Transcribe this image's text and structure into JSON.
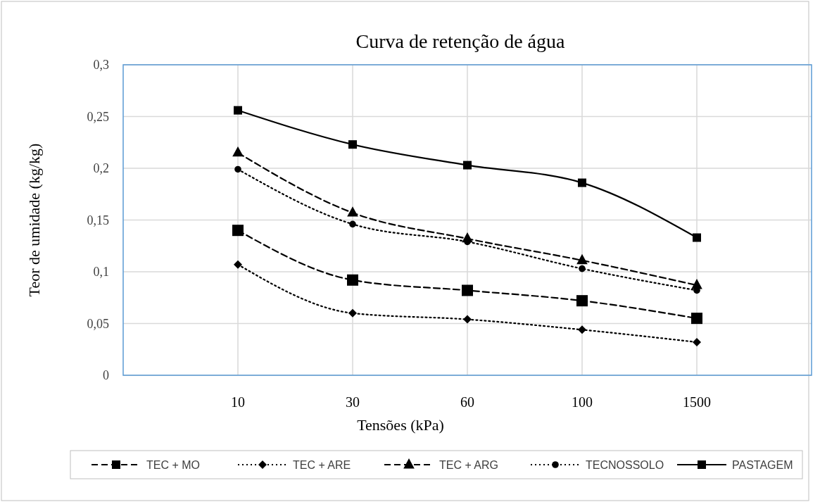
{
  "chart_data": {
    "type": "line",
    "title": "Curva  de retenção  de água",
    "xlabel": "Tensões (kPa)",
    "ylabel": "Teor de umidade (kg/kg)",
    "categories": [
      "10",
      "30",
      "60",
      "100",
      "1500"
    ],
    "ylim": [
      0,
      0.3
    ],
    "yticks": [
      {
        "value": 0,
        "label": "0"
      },
      {
        "value": 0.05,
        "label": "0,05"
      },
      {
        "value": 0.1,
        "label": "0,1"
      },
      {
        "value": 0.15,
        "label": "0,15"
      },
      {
        "value": 0.2,
        "label": "0,2"
      },
      {
        "value": 0.25,
        "label": "0,25"
      },
      {
        "value": 0.3,
        "label": "0,3"
      }
    ],
    "grid": true,
    "legend": "bottom",
    "series": [
      {
        "name": "TEC + MO",
        "color": "#000000",
        "marker": "square",
        "line_style": "dashed",
        "values": [
          0.14,
          0.092,
          0.082,
          0.072,
          0.055
        ]
      },
      {
        "name": "TEC + ARE",
        "color": "#000000",
        "marker": "diamond",
        "line_style": "dotted",
        "values": [
          0.107,
          0.06,
          0.054,
          0.044,
          0.032
        ]
      },
      {
        "name": "TEC + ARG",
        "color": "#000000",
        "marker": "triangle",
        "line_style": "dashed",
        "values": [
          0.215,
          0.157,
          0.132,
          0.111,
          0.087
        ]
      },
      {
        "name": "TECNOSSOLO",
        "color": "#000000",
        "marker": "circle",
        "line_style": "dotted",
        "values": [
          0.199,
          0.146,
          0.129,
          0.103,
          0.082
        ]
      },
      {
        "name": "PASTAGEM",
        "color": "#000000",
        "marker": "square",
        "line_style": "solid",
        "values": [
          0.256,
          0.223,
          0.203,
          0.186,
          0.133
        ]
      }
    ]
  }
}
